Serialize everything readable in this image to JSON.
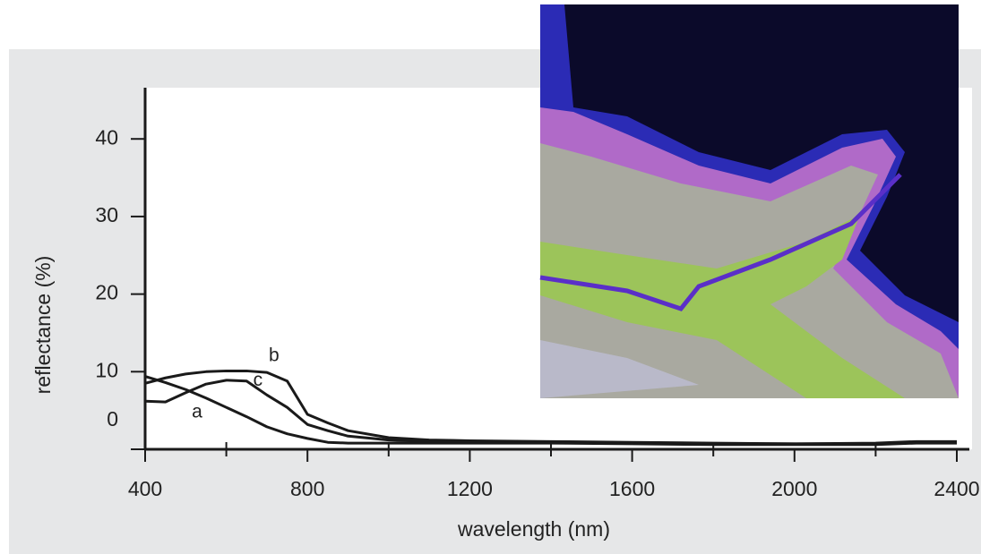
{
  "chart_data": {
    "type": "line",
    "x_label": "wavelength (nm)",
    "y_label": "reflectance (%)",
    "x": [
      400,
      450,
      500,
      550,
      600,
      650,
      700,
      750,
      800,
      850,
      900,
      1000,
      1100,
      1200,
      1400,
      1600,
      1800,
      2000,
      2200,
      2300,
      2400
    ],
    "series": [
      {
        "name": "a",
        "color": "#1a1a1a",
        "values": [
          9.4,
          8.6,
          7.7,
          6.6,
          5.4,
          4.2,
          2.9,
          2.0,
          1.4,
          0.9,
          0.8,
          0.8,
          0.8,
          0.8,
          0.8,
          0.7,
          0.6,
          0.6,
          0.6,
          0.8,
          0.8
        ]
      },
      {
        "name": "b",
        "color": "#1a1a1a",
        "values": [
          8.5,
          9.2,
          9.7,
          10.0,
          10.1,
          10.1,
          9.9,
          8.8,
          4.5,
          3.4,
          2.4,
          1.5,
          1.2,
          1.1,
          1.0,
          0.9,
          0.8,
          0.7,
          0.8,
          1.0,
          1.0
        ]
      },
      {
        "name": "c",
        "color": "#1a1a1a",
        "values": [
          6.2,
          6.1,
          7.3,
          8.4,
          8.9,
          8.8,
          7.0,
          5.4,
          3.2,
          2.4,
          1.7,
          1.2,
          1.0,
          0.9,
          0.9,
          0.8,
          0.7,
          0.7,
          0.7,
          0.9,
          0.9
        ]
      }
    ],
    "xlim": [
      400,
      2400
    ],
    "xticks": [
      400,
      800,
      1200,
      1600,
      2000,
      2400
    ],
    "xminor_ticks": [
      600,
      1000,
      1400,
      1800,
      2200
    ],
    "ylim": [
      0,
      46.6
    ],
    "yticks": [
      0,
      10,
      20,
      30,
      40
    ],
    "grid": false
  }
}
